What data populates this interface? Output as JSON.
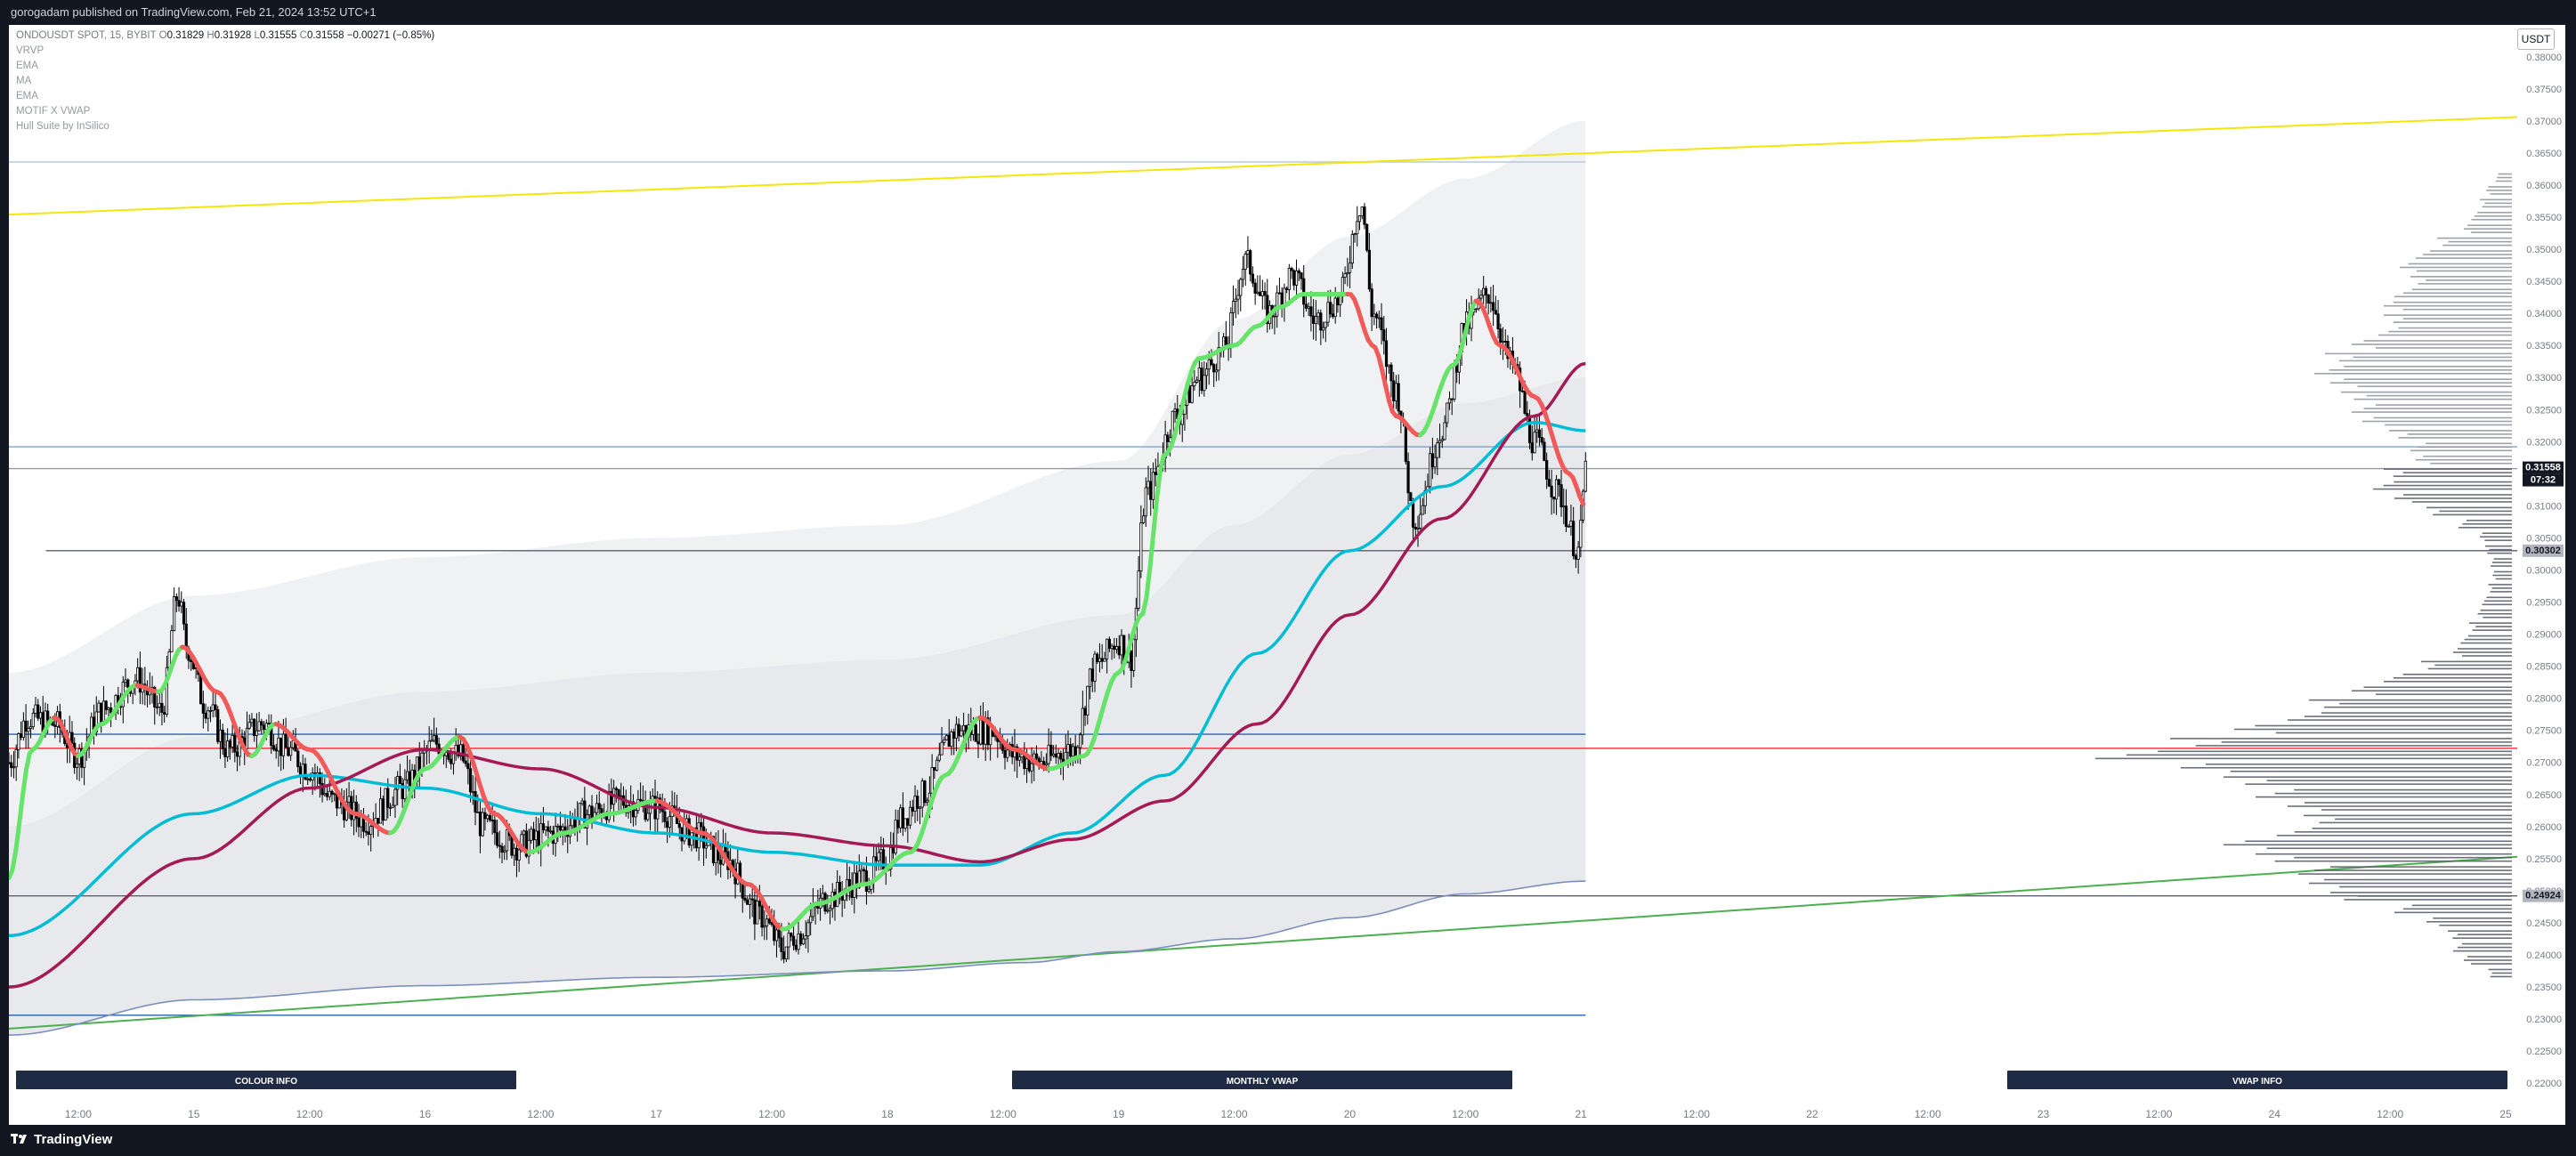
{
  "header": {
    "publisher": "gorogadam published on TradingView.com, Feb 21, 2024 13:52 UTC+1"
  },
  "legend": {
    "symbol": "ONDOUSDT SPOT, 15, BYBIT",
    "open_label": "O",
    "open": "0.31829",
    "high_label": "H",
    "high": "0.31928",
    "low_label": "L",
    "low": "0.31555",
    "close_label": "C",
    "close": "0.31558",
    "change": "−0.00271 (−0.85%)",
    "indicators": [
      "VRVP",
      "EMA",
      "MA",
      "EMA",
      "MOTIF X VWAP",
      "Hull Suite by InSilico"
    ]
  },
  "price_axis": {
    "unit": "USDT",
    "current_price_label": "0.31558",
    "countdown_label": "07:32",
    "level_label_1": "0.30302",
    "level_label_2": "0.24924"
  },
  "buttons": {
    "colour_info": "COLOUR INFO",
    "monthly_vwap": "MONTHLY VWAP",
    "vwap_info": "VWAP INFO"
  },
  "footer": {
    "logo_text": "TradingView"
  },
  "colors": {
    "background": "#ffffff",
    "frame": "#131722",
    "candle": "#000000",
    "ema_cyan": "#00bcd4",
    "ma_maroon": "#a31a54",
    "hull_up": "#66e36a",
    "hull_down": "#f05a5a",
    "trend_yellow": "#f5e60a",
    "trend_green": "#4caf50",
    "level_red": "#f23645",
    "level_blue": "#2a62a8",
    "vwap_band": "#e3e5ea",
    "button_bg": "#1f2a44"
  },
  "chart_data": {
    "type": "line",
    "price_ticks": [
      "0.38000",
      "0.37500",
      "0.37000",
      "0.36500",
      "0.36000",
      "0.35500",
      "0.35000",
      "0.34500",
      "0.34000",
      "0.33500",
      "0.33000",
      "0.32500",
      "0.32000",
      "0.31500",
      "0.31000",
      "0.30500",
      "0.30000",
      "0.29500",
      "0.29000",
      "0.28500",
      "0.28000",
      "0.27500",
      "0.27000",
      "0.26500",
      "0.26000",
      "0.25500",
      "0.25000",
      "0.24500",
      "0.24000",
      "0.23500",
      "0.23000",
      "0.22500",
      "0.22000"
    ],
    "ylim": [
      0.2185,
      0.3808
    ],
    "time_ticks": [
      {
        "t": 0.5,
        "label": "12:00"
      },
      {
        "t": 1.0,
        "label": "15"
      },
      {
        "t": 1.5,
        "label": "12:00"
      },
      {
        "t": 2.0,
        "label": "16"
      },
      {
        "t": 2.5,
        "label": "12:00"
      },
      {
        "t": 3.0,
        "label": "17"
      },
      {
        "t": 3.5,
        "label": "12:00"
      },
      {
        "t": 4.0,
        "label": "18"
      },
      {
        "t": 4.5,
        "label": "12:00"
      },
      {
        "t": 5.0,
        "label": "19"
      },
      {
        "t": 5.5,
        "label": "12:00"
      },
      {
        "t": 6.0,
        "label": "20"
      },
      {
        "t": 6.5,
        "label": "12:00"
      },
      {
        "t": 7.0,
        "label": "21"
      },
      {
        "t": 7.5,
        "label": "12:00"
      },
      {
        "t": 8.0,
        "label": "22"
      },
      {
        "t": 8.5,
        "label": "12:00"
      },
      {
        "t": 9.0,
        "label": "23"
      },
      {
        "t": 9.5,
        "label": "12:00"
      },
      {
        "t": 10.0,
        "label": "24"
      },
      {
        "t": 10.5,
        "label": "12:00"
      },
      {
        "t": 11.0,
        "label": "25"
      }
    ],
    "xlim": [
      0.2,
      11.05
    ],
    "price_key": [
      [
        0.2,
        0.27
      ],
      [
        0.28,
        0.277
      ],
      [
        0.4,
        0.276
      ],
      [
        0.5,
        0.271
      ],
      [
        0.6,
        0.278
      ],
      [
        0.75,
        0.283
      ],
      [
        0.86,
        0.278
      ],
      [
        0.93,
        0.296
      ],
      [
        0.97,
        0.288
      ],
      [
        1.05,
        0.279
      ],
      [
        1.15,
        0.272
      ],
      [
        1.3,
        0.276
      ],
      [
        1.4,
        0.272
      ],
      [
        1.5,
        0.269
      ],
      [
        1.6,
        0.264
      ],
      [
        1.75,
        0.261
      ],
      [
        1.9,
        0.266
      ],
      [
        2.05,
        0.273
      ],
      [
        2.15,
        0.271
      ],
      [
        2.25,
        0.26
      ],
      [
        2.4,
        0.257
      ],
      [
        2.55,
        0.259
      ],
      [
        2.7,
        0.262
      ],
      [
        2.85,
        0.264
      ],
      [
        3.0,
        0.263
      ],
      [
        3.15,
        0.259
      ],
      [
        3.3,
        0.255
      ],
      [
        3.45,
        0.246
      ],
      [
        3.55,
        0.241
      ],
      [
        3.6,
        0.243
      ],
      [
        3.75,
        0.249
      ],
      [
        3.9,
        0.252
      ],
      [
        4.0,
        0.255
      ],
      [
        4.05,
        0.261
      ],
      [
        4.15,
        0.265
      ],
      [
        4.3,
        0.275
      ],
      [
        4.45,
        0.275
      ],
      [
        4.55,
        0.271
      ],
      [
        4.65,
        0.27
      ],
      [
        4.8,
        0.272
      ],
      [
        4.9,
        0.285
      ],
      [
        5.0,
        0.289
      ],
      [
        5.05,
        0.286
      ],
      [
        5.12,
        0.312
      ],
      [
        5.25,
        0.324
      ],
      [
        5.35,
        0.33
      ],
      [
        5.45,
        0.334
      ],
      [
        5.55,
        0.348
      ],
      [
        5.65,
        0.34
      ],
      [
        5.75,
        0.346
      ],
      [
        5.85,
        0.339
      ],
      [
        5.95,
        0.342
      ],
      [
        6.05,
        0.357
      ],
      [
        6.1,
        0.34
      ],
      [
        6.2,
        0.328
      ],
      [
        6.28,
        0.308
      ],
      [
        6.4,
        0.322
      ],
      [
        6.5,
        0.338
      ],
      [
        6.6,
        0.343
      ],
      [
        6.7,
        0.332
      ],
      [
        6.8,
        0.32
      ],
      [
        6.9,
        0.312
      ],
      [
        6.99,
        0.303
      ],
      [
        7.02,
        0.3156
      ]
    ],
    "ema_cyan_key": [
      [
        0.2,
        0.243
      ],
      [
        1.0,
        0.262
      ],
      [
        1.5,
        0.268
      ],
      [
        2.0,
        0.266
      ],
      [
        2.5,
        0.262
      ],
      [
        3.0,
        0.259
      ],
      [
        3.5,
        0.256
      ],
      [
        4.0,
        0.254
      ],
      [
        4.4,
        0.254
      ],
      [
        4.8,
        0.259
      ],
      [
        5.2,
        0.268
      ],
      [
        5.6,
        0.287
      ],
      [
        6.0,
        0.303
      ],
      [
        6.4,
        0.313
      ],
      [
        6.8,
        0.323
      ],
      [
        7.02,
        0.3217
      ]
    ],
    "ma_maroon_key": [
      [
        0.2,
        0.235
      ],
      [
        1.0,
        0.255
      ],
      [
        1.5,
        0.266
      ],
      [
        2.0,
        0.272
      ],
      [
        2.5,
        0.269
      ],
      [
        3.0,
        0.263
      ],
      [
        3.5,
        0.259
      ],
      [
        4.0,
        0.257
      ],
      [
        4.4,
        0.2545
      ],
      [
        4.8,
        0.258
      ],
      [
        5.2,
        0.264
      ],
      [
        5.6,
        0.276
      ],
      [
        6.0,
        0.293
      ],
      [
        6.4,
        0.308
      ],
      [
        6.8,
        0.324
      ],
      [
        7.02,
        0.3322
      ]
    ],
    "hull_key": [
      [
        0.2,
        0.252
      ],
      [
        0.3,
        0.272
      ],
      [
        0.4,
        0.277
      ],
      [
        0.5,
        0.271
      ],
      [
        0.6,
        0.276
      ],
      [
        0.75,
        0.282
      ],
      [
        0.85,
        0.281
      ],
      [
        0.95,
        0.288
      ],
      [
        1.1,
        0.281
      ],
      [
        1.25,
        0.271
      ],
      [
        1.35,
        0.276
      ],
      [
        1.5,
        0.272
      ],
      [
        1.7,
        0.262
      ],
      [
        1.85,
        0.259
      ],
      [
        2.0,
        0.269
      ],
      [
        2.15,
        0.274
      ],
      [
        2.3,
        0.262
      ],
      [
        2.45,
        0.256
      ],
      [
        2.6,
        0.259
      ],
      [
        2.8,
        0.262
      ],
      [
        3.0,
        0.264
      ],
      [
        3.2,
        0.259
      ],
      [
        3.4,
        0.251
      ],
      [
        3.55,
        0.244
      ],
      [
        3.7,
        0.248
      ],
      [
        3.9,
        0.251
      ],
      [
        4.1,
        0.256
      ],
      [
        4.25,
        0.268
      ],
      [
        4.4,
        0.277
      ],
      [
        4.55,
        0.272
      ],
      [
        4.7,
        0.269
      ],
      [
        4.85,
        0.271
      ],
      [
        5.0,
        0.284
      ],
      [
        5.1,
        0.293
      ],
      [
        5.2,
        0.318
      ],
      [
        5.35,
        0.333
      ],
      [
        5.5,
        0.335
      ],
      [
        5.6,
        0.338
      ],
      [
        5.7,
        0.341
      ],
      [
        5.8,
        0.343
      ],
      [
        5.9,
        0.343
      ],
      [
        6.0,
        0.343
      ],
      [
        6.1,
        0.335
      ],
      [
        6.2,
        0.324
      ],
      [
        6.3,
        0.321
      ],
      [
        6.45,
        0.332
      ],
      [
        6.55,
        0.342
      ],
      [
        6.65,
        0.335
      ],
      [
        6.8,
        0.327
      ],
      [
        6.95,
        0.315
      ],
      [
        7.02,
        0.31
      ]
    ],
    "vwap_line_key": [
      [
        0.2,
        0.2275
      ],
      [
        1.0,
        0.233
      ],
      [
        2.0,
        0.2352
      ],
      [
        3.0,
        0.2365
      ],
      [
        4.0,
        0.2375
      ],
      [
        4.6,
        0.2388
      ],
      [
        5.0,
        0.2405
      ],
      [
        5.5,
        0.2425
      ],
      [
        6.0,
        0.2458
      ],
      [
        6.5,
        0.2495
      ],
      [
        7.02,
        0.2515
      ]
    ],
    "band_upper_key": [
      [
        0.2,
        0.284
      ],
      [
        1.0,
        0.296
      ],
      [
        2.0,
        0.302
      ],
      [
        3.0,
        0.305
      ],
      [
        4.0,
        0.307
      ],
      [
        5.0,
        0.317
      ],
      [
        5.5,
        0.339
      ],
      [
        6.0,
        0.352
      ],
      [
        6.5,
        0.361
      ],
      [
        7.02,
        0.37
      ]
    ],
    "band_mid_key": [
      [
        0.2,
        0.26
      ],
      [
        1.0,
        0.274
      ],
      [
        2.0,
        0.281
      ],
      [
        3.0,
        0.284
      ],
      [
        4.0,
        0.286
      ],
      [
        5.0,
        0.293
      ],
      [
        5.5,
        0.307
      ],
      [
        6.0,
        0.318
      ],
      [
        6.5,
        0.326
      ],
      [
        7.02,
        0.33
      ]
    ],
    "yellow_trendline": [
      [
        0.2,
        0.3554
      ],
      [
        11.05,
        0.3706
      ]
    ],
    "green_trendline": [
      [
        0.2,
        0.2285
      ],
      [
        11.05,
        0.2553
      ]
    ],
    "hlines": [
      {
        "y": 0.3636,
        "color": "#b7c8dd",
        "x0": 0.2,
        "x1": 7.02
      },
      {
        "y": 0.3192,
        "color": "#7fa3c8",
        "x0": 0.2,
        "x1": 11.05
      },
      {
        "y": 0.3158,
        "color": "#9598a1",
        "x0": 0.2,
        "x1": 11.05
      },
      {
        "y": 0.303,
        "color": "#5d606b",
        "x0": 0.36,
        "x1": 11.05
      },
      {
        "y": 0.2744,
        "color": "#2a62a8",
        "x0": 0.2,
        "x1": 7.02
      },
      {
        "y": 0.2722,
        "color": "#f23645",
        "x0": 0.2,
        "x1": 11.05
      },
      {
        "y": 0.2492,
        "color": "#5d606b",
        "x0": 0.2,
        "x1": 11.05
      },
      {
        "y": 0.2306,
        "color": "#2a62a8",
        "x0": 0.2,
        "x1": 7.02
      }
    ],
    "volume_profile": {
      "levels": [
        [
          0.361,
          15
        ],
        [
          0.359,
          24
        ],
        [
          0.357,
          30
        ],
        [
          0.355,
          38
        ],
        [
          0.353,
          45
        ],
        [
          0.351,
          70
        ],
        [
          0.349,
          90
        ],
        [
          0.347,
          105
        ],
        [
          0.345,
          95
        ],
        [
          0.343,
          110
        ],
        [
          0.341,
          120
        ],
        [
          0.339,
          120
        ],
        [
          0.337,
          125
        ],
        [
          0.335,
          150
        ],
        [
          0.333,
          175
        ],
        [
          0.331,
          185
        ],
        [
          0.329,
          170
        ],
        [
          0.327,
          160
        ],
        [
          0.325,
          150
        ],
        [
          0.323,
          140
        ],
        [
          0.321,
          115
        ],
        [
          0.319,
          95
        ],
        [
          0.317,
          90
        ],
        [
          0.315,
          120
        ],
        [
          0.313,
          130
        ],
        [
          0.311,
          110
        ],
        [
          0.309,
          80
        ],
        [
          0.307,
          50
        ],
        [
          0.305,
          30
        ],
        [
          0.303,
          25
        ],
        [
          0.301,
          20
        ],
        [
          0.299,
          18
        ],
        [
          0.297,
          22
        ],
        [
          0.295,
          28
        ],
        [
          0.293,
          32
        ],
        [
          0.291,
          40
        ],
        [
          0.289,
          48
        ],
        [
          0.287,
          55
        ],
        [
          0.285,
          85
        ],
        [
          0.283,
          120
        ],
        [
          0.281,
          150
        ],
        [
          0.279,
          190
        ],
        [
          0.277,
          210
        ],
        [
          0.275,
          260
        ],
        [
          0.273,
          320
        ],
        [
          0.271,
          390
        ],
        [
          0.269,
          310
        ],
        [
          0.267,
          270
        ],
        [
          0.265,
          240
        ],
        [
          0.263,
          210
        ],
        [
          0.261,
          195
        ],
        [
          0.259,
          220
        ],
        [
          0.257,
          270
        ],
        [
          0.255,
          240
        ],
        [
          0.253,
          200
        ],
        [
          0.251,
          190
        ],
        [
          0.249,
          170
        ],
        [
          0.247,
          110
        ],
        [
          0.245,
          80
        ],
        [
          0.243,
          60
        ],
        [
          0.241,
          55
        ],
        [
          0.239,
          45
        ],
        [
          0.237,
          22
        ]
      ]
    },
    "generated_candles_note_free": true
  }
}
